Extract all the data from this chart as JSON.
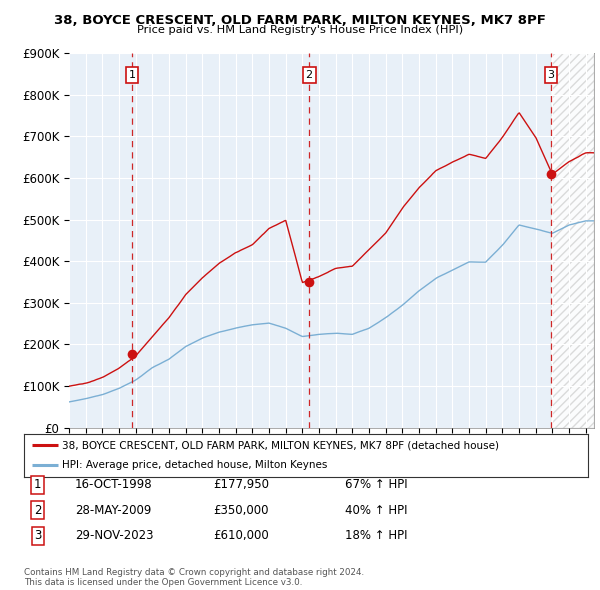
{
  "title1": "38, BOYCE CRESCENT, OLD FARM PARK, MILTON KEYNES, MK7 8PF",
  "title2": "Price paid vs. HM Land Registry's House Price Index (HPI)",
  "ylim": [
    0,
    900000
  ],
  "yticks": [
    0,
    100000,
    200000,
    300000,
    400000,
    500000,
    600000,
    700000,
    800000,
    900000
  ],
  "ytick_labels": [
    "£0",
    "£100K",
    "£200K",
    "£300K",
    "£400K",
    "£500K",
    "£600K",
    "£700K",
    "£800K",
    "£900K"
  ],
  "sale_dates": [
    1998.79,
    2009.41,
    2023.91
  ],
  "sale_prices": [
    177950,
    350000,
    610000
  ],
  "sale_labels": [
    "1",
    "2",
    "3"
  ],
  "hpi_color": "#7bafd4",
  "price_color": "#cc1111",
  "dashed_line_color": "#cc1111",
  "background_color": "#ffffff",
  "plot_bg_color": "#e8f0f8",
  "grid_color": "#ffffff",
  "legend_label_red": "38, BOYCE CRESCENT, OLD FARM PARK, MILTON KEYNES, MK7 8PF (detached house)",
  "legend_label_blue": "HPI: Average price, detached house, Milton Keynes",
  "sale_info": [
    {
      "num": "1",
      "date": "16-OCT-1998",
      "price": "£177,950",
      "pct": "67% ↑ HPI"
    },
    {
      "num": "2",
      "date": "28-MAY-2009",
      "price": "£350,000",
      "pct": "40% ↑ HPI"
    },
    {
      "num": "3",
      "date": "29-NOV-2023",
      "price": "£610,000",
      "pct": "18% ↑ HPI"
    }
  ],
  "footer1": "Contains HM Land Registry data © Crown copyright and database right 2024.",
  "footer2": "This data is licensed under the Open Government Licence v3.0.",
  "xmin": 1995.0,
  "xmax": 2026.5,
  "hpi_knots_x": [
    1995,
    1996,
    1997,
    1998,
    1999,
    2000,
    2001,
    2002,
    2003,
    2004,
    2005,
    2006,
    2007,
    2008,
    2009,
    2010,
    2011,
    2012,
    2013,
    2014,
    2015,
    2016,
    2017,
    2018,
    2019,
    2020,
    2021,
    2022,
    2023,
    2024,
    2025,
    2026
  ],
  "hpi_knots_y": [
    62000,
    70000,
    80000,
    95000,
    115000,
    145000,
    165000,
    195000,
    215000,
    230000,
    240000,
    248000,
    252000,
    240000,
    220000,
    225000,
    228000,
    225000,
    240000,
    265000,
    295000,
    330000,
    360000,
    380000,
    400000,
    400000,
    440000,
    490000,
    480000,
    470000,
    490000,
    500000
  ],
  "red_knots_x": [
    1995,
    1996,
    1997,
    1998,
    1999,
    2000,
    2001,
    2002,
    2003,
    2004,
    2005,
    2006,
    2007,
    2008,
    2009,
    2010,
    2011,
    2012,
    2013,
    2014,
    2015,
    2016,
    2017,
    2018,
    2019,
    2020,
    2021,
    2022,
    2023,
    2024,
    2025,
    2026
  ],
  "red_knots_y": [
    100000,
    108000,
    122000,
    145000,
    175000,
    220000,
    265000,
    320000,
    360000,
    395000,
    420000,
    440000,
    480000,
    500000,
    350000,
    365000,
    385000,
    390000,
    430000,
    470000,
    530000,
    580000,
    620000,
    640000,
    660000,
    650000,
    700000,
    760000,
    700000,
    610000,
    640000,
    660000
  ]
}
